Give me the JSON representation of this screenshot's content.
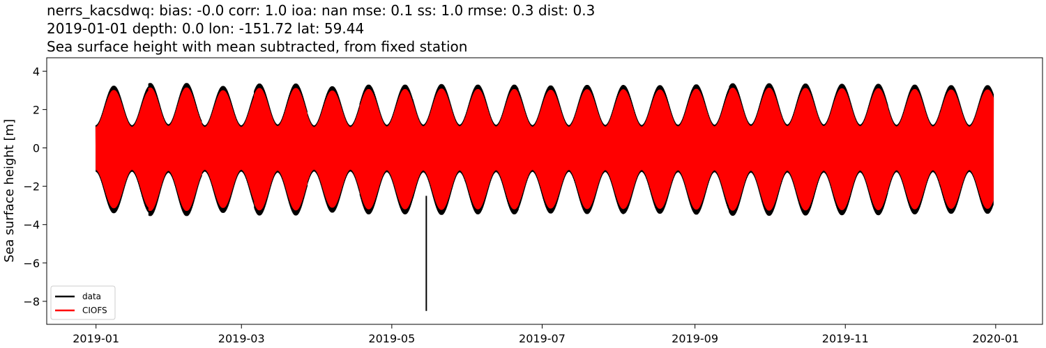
{
  "chart_data": {
    "type": "line",
    "title": [
      "nerrs_kacsdwq: bias: -0.0  corr: 1.0  ioa: nan  mse: 0.1  ss: 1.0  rmse: 0.3  dist: 0.3",
      "2019-01-01 depth: 0.0 lon: -151.72 lat: 59.44",
      "Sea surface height with mean subtracted, from fixed station"
    ],
    "xlabel": "",
    "ylabel": "Sea surface height [m]",
    "x_range": [
      "2018-12-12",
      "2020-01-20"
    ],
    "ylim": [
      -9.2,
      4.7
    ],
    "x_ticks": [
      "2019-01",
      "2019-03",
      "2019-05",
      "2019-07",
      "2019-09",
      "2019-11",
      "2020-01"
    ],
    "y_ticks": [
      4,
      2,
      0,
      -2,
      -4,
      -6,
      -8
    ],
    "grid": false,
    "legend_position": "lower-left",
    "data_range": [
      "2019-01-01",
      "2019-12-31"
    ],
    "series": [
      {
        "name": "data",
        "color": "#000000",
        "description_values": {
          "envelope_upper_peaks_m": [
            3.1,
            4.1,
            3.0,
            3.9,
            2.9,
            3.5,
            3.7,
            3.5,
            3.2,
            3.4,
            3.3,
            3.6,
            4.0,
            3.9,
            3.8,
            3.5,
            3.3
          ],
          "envelope_lower_peaks_m": [
            -4.2,
            -4.4,
            -4.1,
            -4.2,
            -4.0,
            -4.4,
            -4.3,
            -4.4,
            -4.2,
            -4.3
          ],
          "spike": {
            "date": "2019-05-15",
            "value": -8.5
          }
        }
      },
      {
        "name": "CIOFS",
        "color": "#ff0000"
      }
    ]
  }
}
